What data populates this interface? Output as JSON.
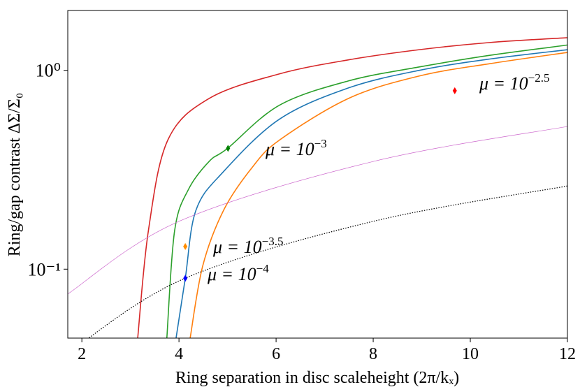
{
  "chart_data": {
    "type": "line",
    "log_y": true,
    "x_label": "Ring separation in disc scaleheight (2π/kₓ)",
    "y_label": "Ring/gap contrast ΔΣ/Σ₀",
    "xlim": [
      1.71,
      12
    ],
    "xticks": [
      2,
      4,
      6,
      8,
      10,
      12
    ],
    "ylim": [
      0.045,
      2
    ],
    "yticks": [
      {
        "value": 1,
        "label": "10⁰"
      },
      {
        "value": 0.1,
        "label": "10⁻¹"
      }
    ],
    "series": [
      {
        "color": "#d62728",
        "linestyle": "solid",
        "x": [
          3.15,
          3.37,
          3.77,
          4.63,
          6.07,
          7.5,
          8.95,
          10.4,
          12
        ],
        "values": [
          0.045,
          0.156,
          0.446,
          0.724,
          0.96,
          1.13,
          1.27,
          1.38,
          1.46
        ]
      },
      {
        "color": "#2ca02c",
        "linestyle": "solid",
        "x": [
          3.75,
          3.91,
          4.2,
          4.63,
          5.0,
          6.07,
          7.5,
          8.95,
          10.4,
          12
        ],
        "values": [
          0.045,
          0.156,
          0.253,
          0.35,
          0.405,
          0.668,
          0.886,
          1.04,
          1.19,
          1.34
        ]
      },
      {
        "color": "#1f77b4",
        "linestyle": "solid",
        "x": [
          3.94,
          4.13,
          4.35,
          4.92,
          6.07,
          7.5,
          8.95,
          10.4,
          12
        ],
        "values": [
          0.045,
          0.09,
          0.198,
          0.31,
          0.568,
          0.817,
          1.0,
          1.14,
          1.27
        ]
      },
      {
        "color": "#ff7f0e",
        "linestyle": "solid",
        "x": [
          4.23,
          4.49,
          4.92,
          5.5,
          6.07,
          7.5,
          8.95,
          10.4,
          12
        ],
        "values": [
          0.045,
          0.104,
          0.198,
          0.323,
          0.446,
          0.724,
          0.937,
          1.08,
          1.23
        ]
      },
      {
        "color": "#cc66cc",
        "linestyle": "thin",
        "x": [
          1.71,
          4,
          8,
          12
        ],
        "values": [
          0.075,
          0.174,
          0.348,
          0.522
        ]
      },
      {
        "color": "#000000",
        "linestyle": "dotted",
        "x": [
          1.9,
          4.15,
          8,
          12
        ],
        "values": [
          0.041,
          0.0905,
          0.174,
          0.262
        ]
      }
    ],
    "points": [
      {
        "color": "#ff0000",
        "x": 9.68,
        "value": 0.79
      },
      {
        "color": "#008000",
        "x": 5.01,
        "value": 0.405
      },
      {
        "color": "#ff8c00",
        "x": 4.13,
        "value": 0.13
      },
      {
        "color": "#0000ff",
        "x": 4.13,
        "value": 0.09
      }
    ],
    "annotations": [
      {
        "base": "μ = 10",
        "exponent": "−2.5"
      },
      {
        "base": "μ = 10",
        "exponent": "−3"
      },
      {
        "base": "μ = 10",
        "exponent": "−3.5"
      },
      {
        "base": "μ = 10",
        "exponent": "−4"
      }
    ]
  }
}
